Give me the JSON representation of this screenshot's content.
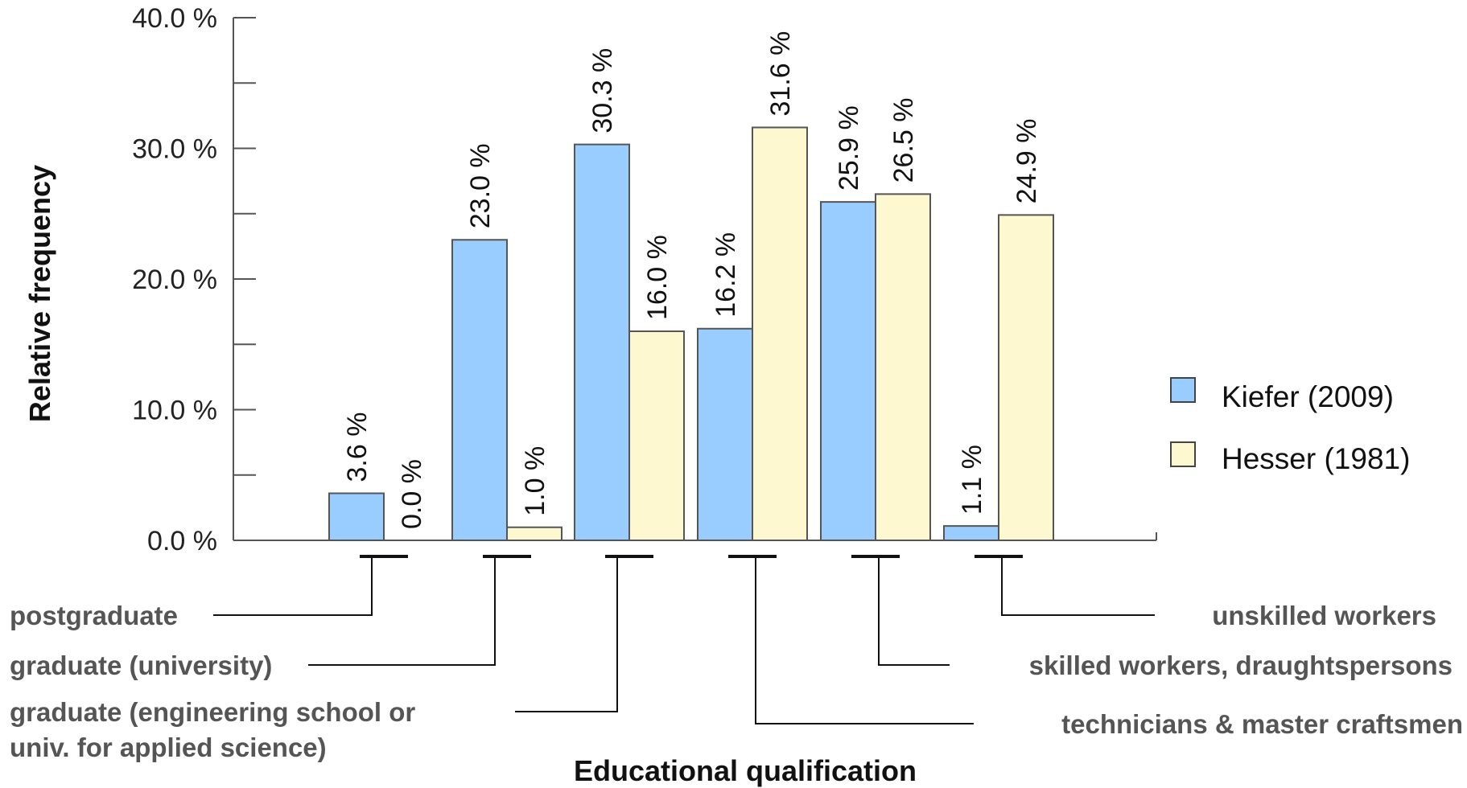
{
  "chart_data": {
    "type": "bar",
    "categories": [
      "postgraduate",
      "graduate (university)",
      "graduate (engineering school or univ.  for applied science)",
      "technicians & master craftsmen",
      "skilled workers, draughtspersons",
      "unskilled workers"
    ],
    "series": [
      {
        "name": "Kiefer (2009)",
        "color": "#99ccff",
        "values": [
          3.6,
          23.0,
          30.3,
          16.2,
          25.9,
          1.1
        ],
        "labels": [
          "3.6 %",
          "23.0 %",
          "30.3 %",
          "16.2 %",
          "25.9 %",
          "1.1 %"
        ]
      },
      {
        "name": "Hesser (1981)",
        "color": "#fdf8d0",
        "values": [
          0.0,
          1.0,
          16.0,
          31.6,
          26.5,
          24.9
        ],
        "labels": [
          "0.0 %",
          "1.0 %",
          "16.0 %",
          "31.6 %",
          "26.5 %",
          "24.9 %"
        ]
      }
    ],
    "ylim": [
      0,
      40
    ],
    "yticks": [
      0,
      10,
      20,
      30,
      40
    ],
    "ytick_labels": [
      "0.0 %",
      "10.0 %",
      "20.0 %",
      "30.0 %",
      "40.0 %"
    ],
    "ylabel": "Relative frequency",
    "xlabel": "Educational qualification",
    "category_label_lines": [
      [
        "postgraduate"
      ],
      [
        "graduate (university)"
      ],
      [
        "graduate (engineering school or",
        "univ.  for applied science)"
      ],
      [
        "technicians & master craftsmen"
      ],
      [
        "skilled workers, draughtspersons"
      ],
      [
        "unskilled workers"
      ]
    ],
    "legend_position": "right",
    "grid": false,
    "bar_outline_color": "#555555",
    "category_label_color": "#555555"
  }
}
